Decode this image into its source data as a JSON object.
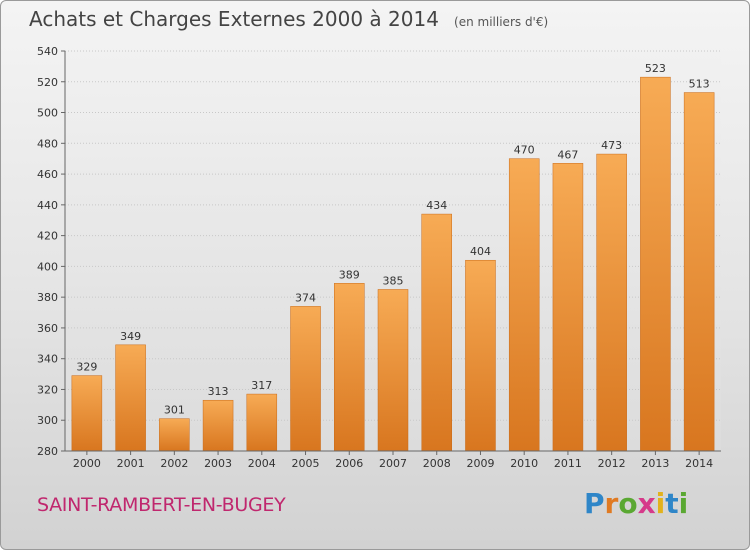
{
  "header": {
    "title": "Achats et Charges Externes 2000 à 2014",
    "subtitle": "(en milliers d'€)"
  },
  "footer": {
    "town": "SAINT-RAMBERT-EN-BUGEY",
    "brand_letters": [
      {
        "ch": "P",
        "color": "#2f86c8"
      },
      {
        "ch": "r",
        "color": "#e07a22"
      },
      {
        "ch": "o",
        "color": "#5aa832"
      },
      {
        "ch": "x",
        "color": "#d63a8a"
      },
      {
        "ch": "i",
        "color": "#e2b21c"
      },
      {
        "ch": "t",
        "color": "#2f86c8"
      },
      {
        "ch": "i",
        "color": "#5aa832"
      }
    ]
  },
  "chart_data": {
    "type": "bar",
    "categories": [
      "2000",
      "2001",
      "2002",
      "2003",
      "2004",
      "2005",
      "2006",
      "2007",
      "2008",
      "2009",
      "2010",
      "2011",
      "2012",
      "2013",
      "2014"
    ],
    "values": [
      329,
      349,
      301,
      313,
      317,
      374,
      389,
      385,
      434,
      404,
      470,
      467,
      473,
      523,
      513
    ],
    "ylim": [
      280,
      540
    ],
    "yticks": [
      280,
      300,
      320,
      340,
      360,
      380,
      400,
      420,
      440,
      460,
      480,
      500,
      520,
      540
    ],
    "grid": true,
    "bar_color": "#f2a04a"
  }
}
